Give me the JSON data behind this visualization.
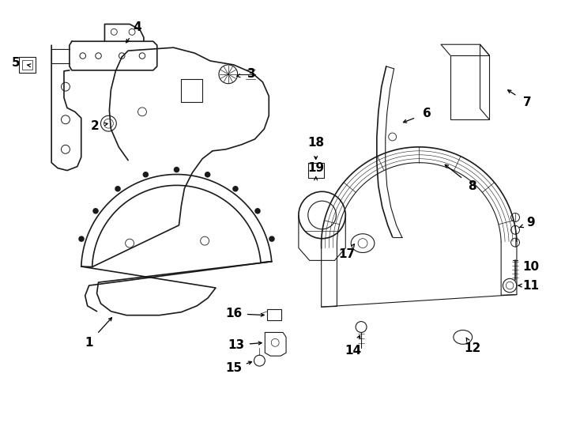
{
  "background": "#ffffff",
  "line_color": "#1a1a1a",
  "fig_width": 7.34,
  "fig_height": 5.4,
  "dpi": 100,
  "callouts": [
    [
      1,
      1.1,
      4.35,
      1.42,
      4.0
    ],
    [
      2,
      1.18,
      1.58,
      1.35,
      1.55
    ],
    [
      3,
      3.18,
      0.92,
      2.95,
      0.95
    ],
    [
      4,
      1.72,
      0.32,
      1.55,
      0.55
    ],
    [
      5,
      0.17,
      0.78,
      0.3,
      0.8
    ],
    [
      6,
      5.42,
      1.42,
      5.08,
      1.55
    ],
    [
      7,
      6.7,
      1.28,
      6.42,
      1.1
    ],
    [
      8,
      6.0,
      2.35,
      5.62,
      2.05
    ],
    [
      9,
      6.75,
      2.82,
      6.6,
      2.88
    ],
    [
      10,
      6.75,
      3.38,
      6.6,
      3.38
    ],
    [
      11,
      6.75,
      3.62,
      6.58,
      3.62
    ],
    [
      12,
      6.0,
      4.42,
      5.92,
      4.28
    ],
    [
      13,
      2.98,
      4.38,
      3.35,
      4.35
    ],
    [
      14,
      4.48,
      4.45,
      4.58,
      4.22
    ],
    [
      15,
      2.95,
      4.68,
      3.22,
      4.58
    ],
    [
      16,
      2.95,
      3.98,
      3.38,
      4.0
    ],
    [
      17,
      4.4,
      3.22,
      4.5,
      3.08
    ],
    [
      18,
      4.0,
      1.8,
      4.0,
      2.05
    ],
    [
      19,
      4.0,
      2.12,
      4.0,
      2.22
    ]
  ]
}
